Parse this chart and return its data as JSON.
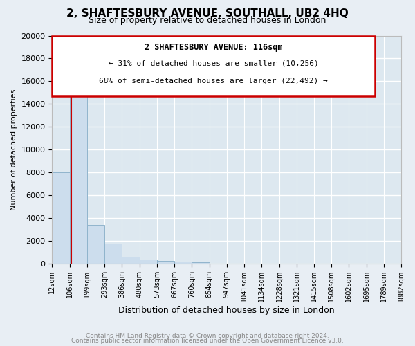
{
  "title": "2, SHAFTESBURY AVENUE, SOUTHALL, UB2 4HQ",
  "subtitle": "Size of property relative to detached houses in London",
  "xlabel": "Distribution of detached houses by size in London",
  "ylabel": "Number of detached properties",
  "footnote1": "Contains HM Land Registry data © Crown copyright and database right 2024.",
  "footnote2": "Contains public sector information licensed under the Open Government Licence v3.0.",
  "bar_color": "#ccdded",
  "bar_edge_color": "#90b4cc",
  "plot_bg_color": "#dde8f0",
  "fig_bg_color": "#e8eef4",
  "grid_color": "#ffffff",
  "annotation_line_color": "#cc0000",
  "annotation_box_color": "#cc0000",
  "ylim": [
    0,
    20000
  ],
  "yticks": [
    0,
    2000,
    4000,
    6000,
    8000,
    10000,
    12000,
    14000,
    16000,
    18000,
    20000
  ],
  "property_size": 116,
  "property_label": "2 SHAFTESBURY AVENUE: 116sqm",
  "annotation_line1": "← 31% of detached houses are smaller (10,256)",
  "annotation_line2": "68% of semi-detached houses are larger (22,492) →",
  "bin_edges": [
    12,
    106,
    199,
    293,
    386,
    480,
    573,
    667,
    760,
    854,
    947,
    1041,
    1134,
    1228,
    1321,
    1415,
    1508,
    1602,
    1695,
    1789,
    1882
  ],
  "bin_labels": [
    "12sqm",
    "106sqm",
    "199sqm",
    "293sqm",
    "386sqm",
    "480sqm",
    "573sqm",
    "667sqm",
    "760sqm",
    "854sqm",
    "947sqm",
    "1041sqm",
    "1134sqm",
    "1228sqm",
    "1321sqm",
    "1415sqm",
    "1508sqm",
    "1602sqm",
    "1695sqm",
    "1789sqm",
    "1882sqm"
  ],
  "bar_heights": [
    8000,
    16600,
    3400,
    1750,
    600,
    350,
    250,
    170,
    120,
    0,
    0,
    0,
    0,
    0,
    0,
    0,
    0,
    0,
    0,
    0
  ]
}
